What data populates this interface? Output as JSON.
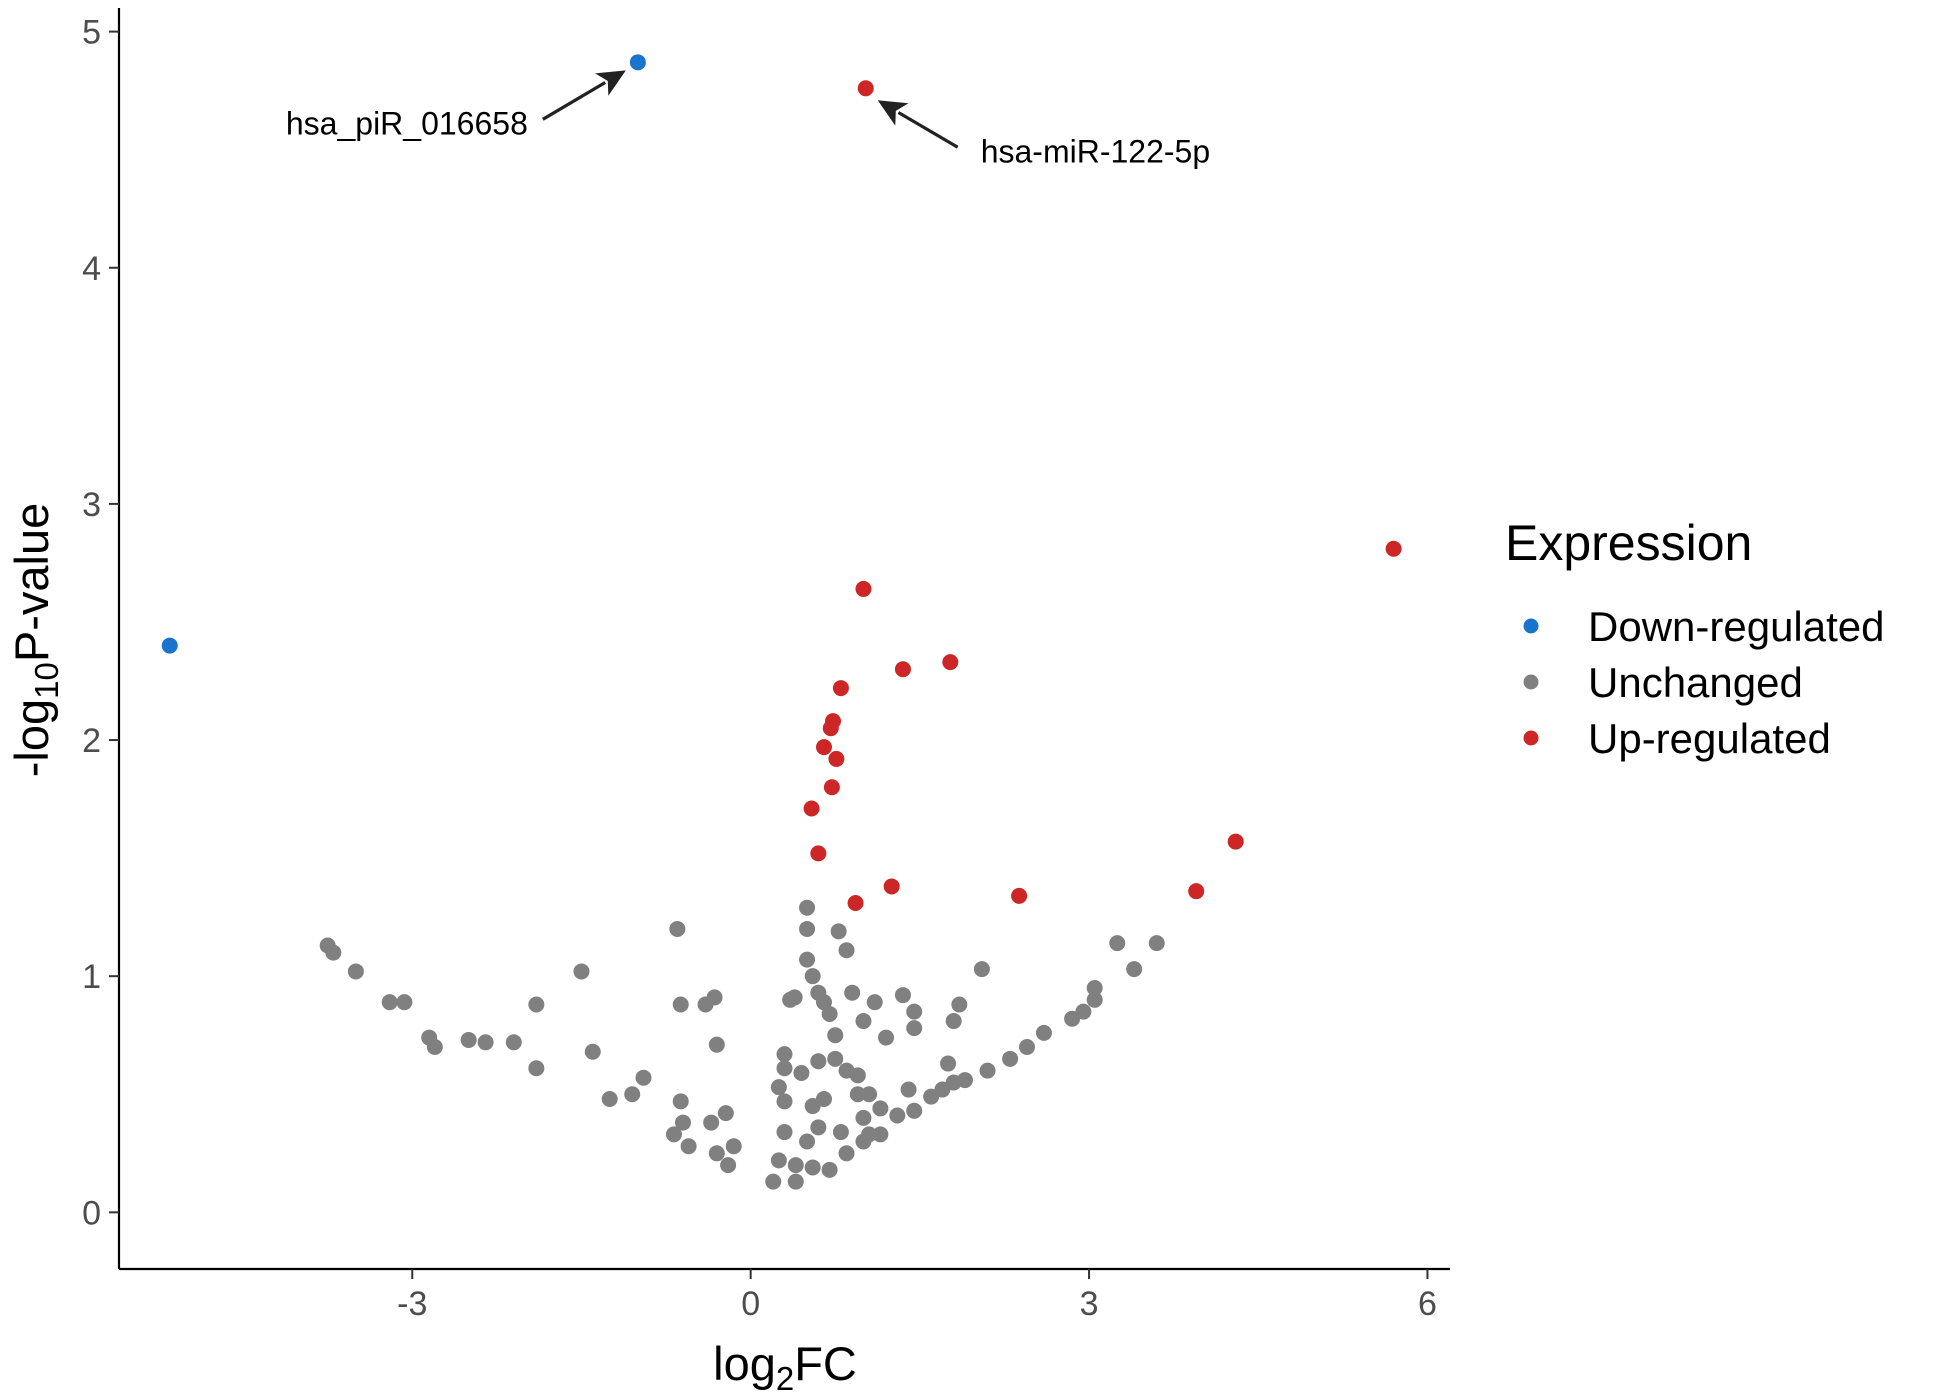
{
  "chart_data": {
    "type": "scatter",
    "title": "",
    "xlabel": {
      "main": "log",
      "sub": "2",
      "rest": "FC"
    },
    "ylabel": {
      "main": "-log",
      "sub": "10",
      "rest": "P-value"
    },
    "xlim": [
      -5.6,
      6.2
    ],
    "ylim": [
      -0.24,
      5.1
    ],
    "x_ticks": [
      {
        "value": -3,
        "label": "-3"
      },
      {
        "value": 0,
        "label": "0"
      },
      {
        "value": 3,
        "label": "3"
      },
      {
        "value": 6,
        "label": "6"
      }
    ],
    "y_ticks": [
      {
        "value": 0,
        "label": "0"
      },
      {
        "value": 1,
        "label": "1"
      },
      {
        "value": 2,
        "label": "2"
      },
      {
        "value": 3,
        "label": "3"
      },
      {
        "value": 4,
        "label": "4"
      },
      {
        "value": 5,
        "label": "5"
      }
    ],
    "colors": {
      "Down-regulated": "#1874CD",
      "Unchanged": "#808080",
      "Up-regulated": "#CD2626"
    },
    "legend": {
      "title": "Expression",
      "position": "right",
      "entries": [
        "Down-regulated",
        "Unchanged",
        "Up-regulated"
      ]
    },
    "annotations": [
      {
        "label": "hsa_piR_016658",
        "x": -1.0,
        "y": 4.87,
        "side": "left"
      },
      {
        "label": "hsa-miR-122-5p",
        "x": 1.02,
        "y": 4.76,
        "side": "right"
      }
    ],
    "series": [
      {
        "name": "Down-regulated",
        "points": [
          [
            -1.0,
            4.87
          ],
          [
            -5.15,
            2.4
          ]
        ]
      },
      {
        "name": "Up-regulated",
        "points": [
          [
            1.02,
            4.76
          ],
          [
            5.7,
            2.81
          ],
          [
            1.0,
            2.64
          ],
          [
            1.35,
            2.3
          ],
          [
            1.77,
            2.33
          ],
          [
            0.8,
            2.22
          ],
          [
            0.73,
            2.08
          ],
          [
            0.71,
            2.05
          ],
          [
            0.65,
            1.97
          ],
          [
            0.76,
            1.92
          ],
          [
            0.72,
            1.8
          ],
          [
            0.54,
            1.71
          ],
          [
            0.6,
            1.52
          ],
          [
            0.93,
            1.31
          ],
          [
            1.25,
            1.38
          ],
          [
            2.38,
            1.34
          ],
          [
            3.95,
            1.36
          ],
          [
            4.3,
            1.57
          ]
        ]
      },
      {
        "name": "Unchanged",
        "points": [
          [
            -3.75,
            1.13
          ],
          [
            -3.7,
            1.1
          ],
          [
            -3.5,
            1.02
          ],
          [
            -3.2,
            0.89
          ],
          [
            -3.07,
            0.89
          ],
          [
            -2.85,
            0.74
          ],
          [
            -2.8,
            0.7
          ],
          [
            -2.5,
            0.73
          ],
          [
            -2.35,
            0.72
          ],
          [
            -2.1,
            0.72
          ],
          [
            -1.9,
            0.88
          ],
          [
            -1.9,
            0.61
          ],
          [
            -1.5,
            1.02
          ],
          [
            -1.4,
            0.68
          ],
          [
            -1.25,
            0.48
          ],
          [
            -1.05,
            0.5
          ],
          [
            -0.95,
            0.57
          ],
          [
            -0.65,
            1.2
          ],
          [
            -0.62,
            0.88
          ],
          [
            -0.4,
            0.88
          ],
          [
            -0.32,
            0.91
          ],
          [
            -0.3,
            0.71
          ],
          [
            -0.62,
            0.47
          ],
          [
            -0.68,
            0.33
          ],
          [
            -0.6,
            0.38
          ],
          [
            -0.55,
            0.28
          ],
          [
            -0.22,
            0.42
          ],
          [
            -0.35,
            0.38
          ],
          [
            -0.3,
            0.25
          ],
          [
            -0.2,
            0.2
          ],
          [
            -0.15,
            0.28
          ],
          [
            0.5,
            1.29
          ],
          [
            0.5,
            1.2
          ],
          [
            0.78,
            1.19
          ],
          [
            0.85,
            1.11
          ],
          [
            0.5,
            1.07
          ],
          [
            0.55,
            1.0
          ],
          [
            0.6,
            0.93
          ],
          [
            0.35,
            0.9
          ],
          [
            0.39,
            0.91
          ],
          [
            0.65,
            0.89
          ],
          [
            0.9,
            0.93
          ],
          [
            0.7,
            0.84
          ],
          [
            0.75,
            0.75
          ],
          [
            1.1,
            0.89
          ],
          [
            1.0,
            0.81
          ],
          [
            1.2,
            0.74
          ],
          [
            1.35,
            0.92
          ],
          [
            1.45,
            0.85
          ],
          [
            1.45,
            0.78
          ],
          [
            1.85,
            0.88
          ],
          [
            1.8,
            0.81
          ],
          [
            2.05,
            1.03
          ],
          [
            0.3,
            0.67
          ],
          [
            0.6,
            0.64
          ],
          [
            0.45,
            0.59
          ],
          [
            0.75,
            0.65
          ],
          [
            0.85,
            0.6
          ],
          [
            0.95,
            0.58
          ],
          [
            0.3,
            0.61
          ],
          [
            0.25,
            0.53
          ],
          [
            0.3,
            0.47
          ],
          [
            0.65,
            0.48
          ],
          [
            0.55,
            0.45
          ],
          [
            0.95,
            0.5
          ],
          [
            1.05,
            0.5
          ],
          [
            1.0,
            0.4
          ],
          [
            1.15,
            0.44
          ],
          [
            1.4,
            0.52
          ],
          [
            1.75,
            0.63
          ],
          [
            1.8,
            0.55
          ],
          [
            0.3,
            0.34
          ],
          [
            0.5,
            0.3
          ],
          [
            0.6,
            0.36
          ],
          [
            0.8,
            0.34
          ],
          [
            1.05,
            0.33
          ],
          [
            0.25,
            0.22
          ],
          [
            0.4,
            0.2
          ],
          [
            0.7,
            0.18
          ],
          [
            0.2,
            0.13
          ],
          [
            3.25,
            1.14
          ],
          [
            3.6,
            1.14
          ],
          [
            3.4,
            1.03
          ],
          [
            3.05,
            0.95
          ],
          [
            3.05,
            0.9
          ],
          [
            2.95,
            0.85
          ],
          [
            2.85,
            0.82
          ],
          [
            2.6,
            0.76
          ],
          [
            2.45,
            0.7
          ],
          [
            2.3,
            0.65
          ],
          [
            2.1,
            0.6
          ],
          [
            1.9,
            0.56
          ],
          [
            1.7,
            0.52
          ],
          [
            1.6,
            0.49
          ],
          [
            1.45,
            0.43
          ],
          [
            1.3,
            0.41
          ],
          [
            1.15,
            0.33
          ],
          [
            1.0,
            0.3
          ],
          [
            0.85,
            0.25
          ],
          [
            0.55,
            0.19
          ],
          [
            0.4,
            0.13
          ]
        ]
      }
    ]
  }
}
